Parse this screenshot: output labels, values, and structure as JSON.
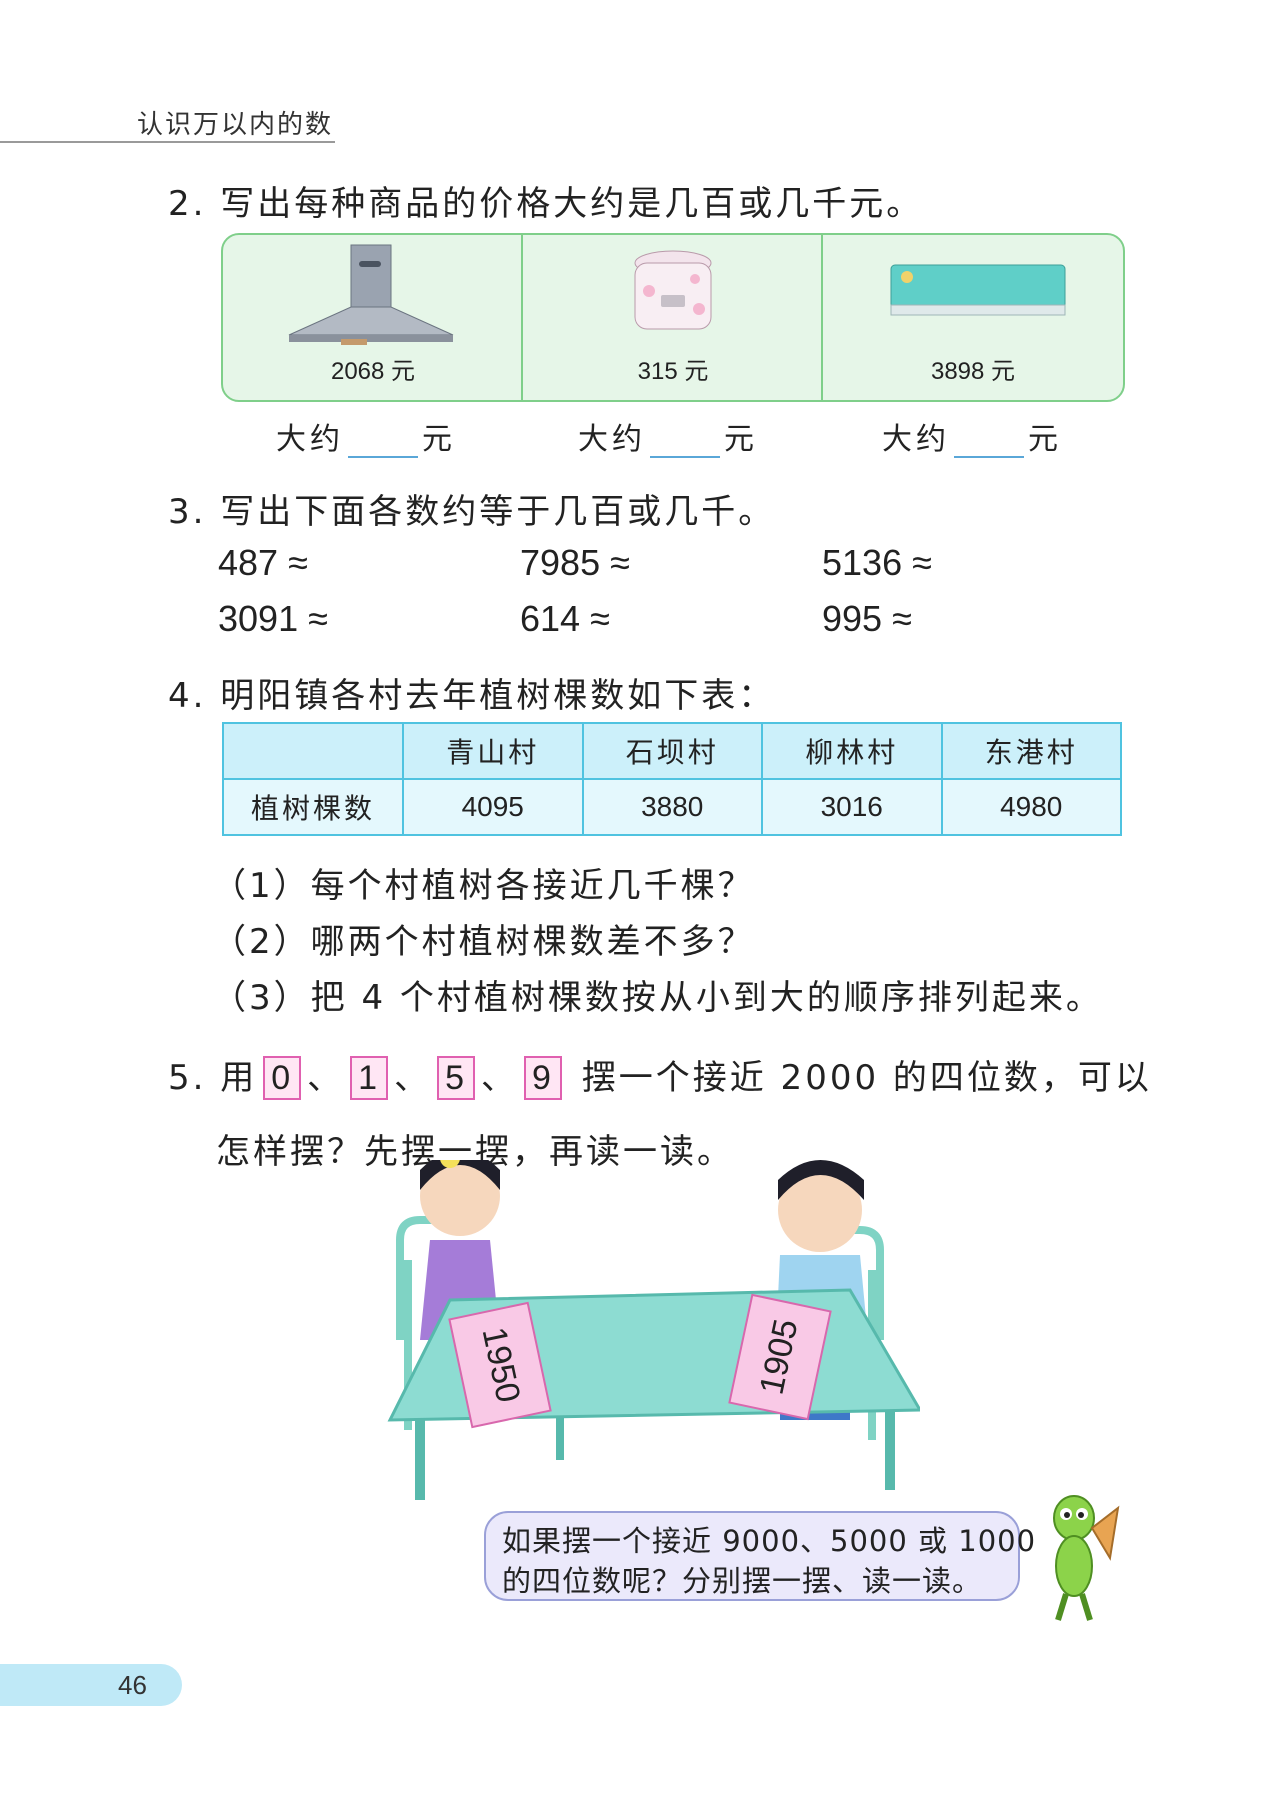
{
  "header": {
    "title": "认识万以内的数"
  },
  "q2": {
    "text": "2. 写出每种商品的价格大约是几百或几千元。",
    "items": [
      {
        "icon": "range-hood-icon",
        "price": "2068 元"
      },
      {
        "icon": "rice-cooker-icon",
        "price": "315 元"
      },
      {
        "icon": "air-conditioner-icon",
        "price": "3898 元"
      }
    ],
    "approx_prefix": "大约",
    "approx_suffix": "元"
  },
  "q3": {
    "text": "3. 写出下面各数约等于几百或几千。",
    "row1": [
      "487 ≈",
      "7985 ≈",
      "5136 ≈"
    ],
    "row2": [
      "3091 ≈",
      "614 ≈",
      "995 ≈"
    ]
  },
  "q4": {
    "text": "4. 明阳镇各村去年植树棵数如下表：",
    "table": {
      "headers": [
        "",
        "青山村",
        "石坝村",
        "柳林村",
        "东港村"
      ],
      "row_label": "植树棵数",
      "values": [
        "4095",
        "3880",
        "3016",
        "4980"
      ]
    },
    "sub": [
      "（1）每个村植树各接近几千棵？",
      "（2）哪两个村植树棵数差不多？",
      "（3）把 4 个村植树棵数按从小到大的顺序排列起来。"
    ]
  },
  "q5": {
    "lead": "5. 用",
    "cards": [
      "0",
      "1",
      "5",
      "9"
    ],
    "sep": "、",
    "rest": "摆一个接近 2000 的四位数，可以",
    "line2": "怎样摆？先摆一摆，再读一读。",
    "left_cards": "1950",
    "right_cards": "1905"
  },
  "bubble": {
    "line1": "如果摆一个接近 9000、5000 或 1000",
    "line2": "的四位数呢？分别摆一摆、读一读。"
  },
  "page_number": "46",
  "colors": {
    "green_border": "#7fcf8a",
    "table_border": "#4fc3e0",
    "card_pink": "#e060b0"
  }
}
